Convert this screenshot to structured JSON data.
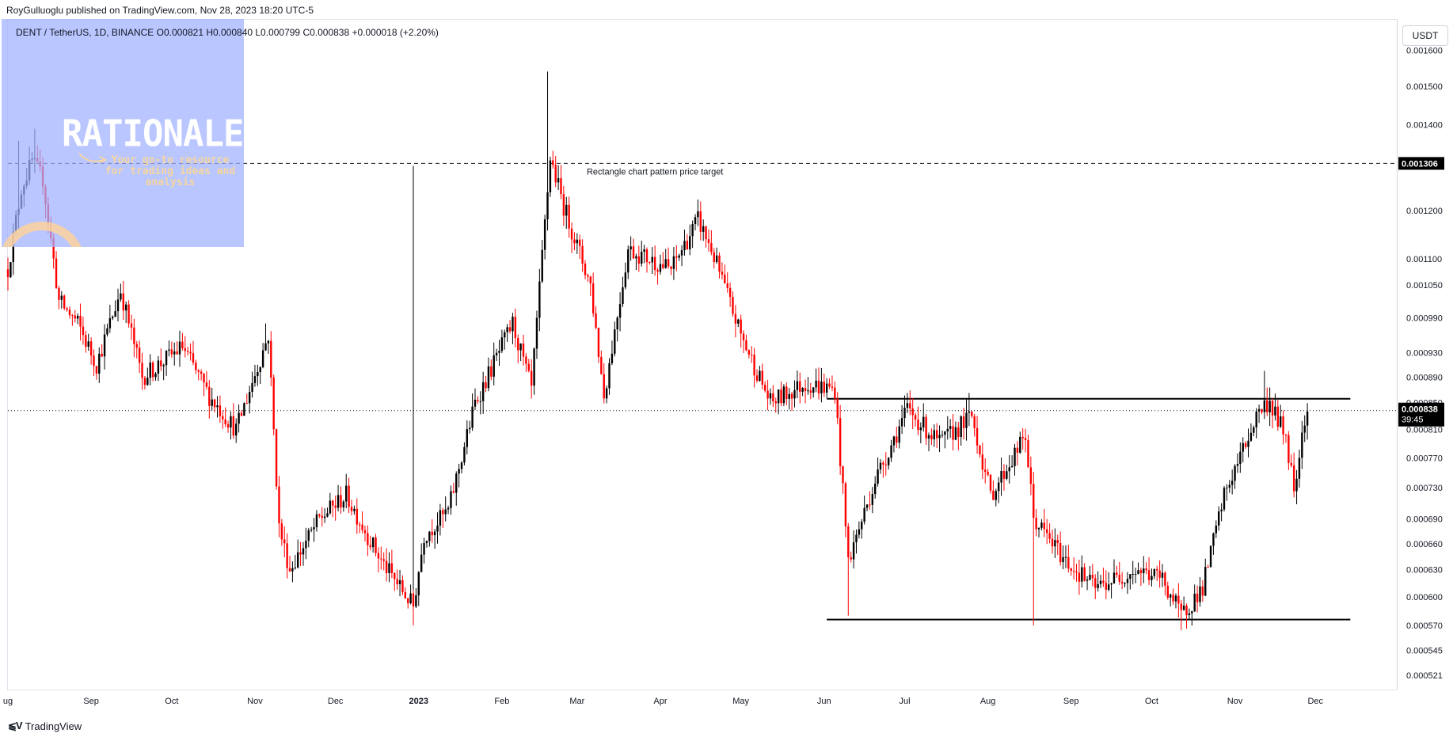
{
  "header": {
    "published_line": "RoyGulluoglu published on TradingView.com, Nov 28, 2023 18:20 UTC-5"
  },
  "legend": {
    "text": "DENT / TetherUS, 1D, BINANCE  O0.000821  H0.000840  L0.000799  C0.000838  +0.000018 (+2.20%)"
  },
  "currency_label": "USDT",
  "branding": {
    "rationale_title": "RATIONALE",
    "rationale_subtitle": "Your go-to resource for trading ideas and analysis",
    "footer_logo": "TradingView"
  },
  "chart_data": {
    "type": "candlestick",
    "symbol": "DENT / TetherUS",
    "interval": "1D",
    "exchange": "BINANCE",
    "ohlc": {
      "open": "0.000821",
      "high": "0.000840",
      "low": "0.000799",
      "close": "0.000838",
      "change": "+0.000018 (+2.20%)"
    },
    "y_axis": {
      "scale": "log",
      "range": [
        0.000508,
        0.00169
      ],
      "ticks": [
        "0.001600",
        "0.001500",
        "0.001400",
        "0.001200",
        "0.001100",
        "0.001050",
        "0.000990",
        "0.000930",
        "0.000890",
        "0.000850",
        "0.000810",
        "0.000770",
        "0.000730",
        "0.000690",
        "0.000660",
        "0.000630",
        "0.000600",
        "0.000570",
        "0.000545",
        "0.000521"
      ]
    },
    "x_axis": {
      "start": "2022-08-01",
      "end": "2023-12-31",
      "ticks": [
        {
          "date": "2022-08-01",
          "label": "ug"
        },
        {
          "date": "2022-09-01",
          "label": "Sep"
        },
        {
          "date": "2022-10-01",
          "label": "Oct"
        },
        {
          "date": "2022-11-01",
          "label": "Nov"
        },
        {
          "date": "2022-12-01",
          "label": "Dec"
        },
        {
          "date": "2023-01-01",
          "label": "2023",
          "bold": true
        },
        {
          "date": "2023-02-01",
          "label": "Feb"
        },
        {
          "date": "2023-03-01",
          "label": "Mar"
        },
        {
          "date": "2023-04-01",
          "label": "Apr"
        },
        {
          "date": "2023-05-01",
          "label": "May"
        },
        {
          "date": "2023-06-01",
          "label": "Jun"
        },
        {
          "date": "2023-07-01",
          "label": "Jul"
        },
        {
          "date": "2023-08-01",
          "label": "Aug"
        },
        {
          "date": "2023-09-01",
          "label": "Sep"
        },
        {
          "date": "2023-10-01",
          "label": "Oct"
        },
        {
          "date": "2023-11-01",
          "label": "Nov"
        },
        {
          "date": "2023-12-01",
          "label": "Dec"
        }
      ]
    },
    "price_path": [
      {
        "date": "2022-08-01",
        "price": 0.00108
      },
      {
        "date": "2022-08-06",
        "price": 0.00125
      },
      {
        "date": "2022-08-10",
        "price": 0.00131
      },
      {
        "date": "2022-08-14",
        "price": 0.00127
      },
      {
        "date": "2022-08-20",
        "price": 0.00102
      },
      {
        "date": "2022-08-27",
        "price": 0.00098
      },
      {
        "date": "2022-09-03",
        "price": 0.00091
      },
      {
        "date": "2022-09-12",
        "price": 0.00104
      },
      {
        "date": "2022-09-20",
        "price": 0.00089
      },
      {
        "date": "2022-10-05",
        "price": 0.00094
      },
      {
        "date": "2022-10-15",
        "price": 0.00086
      },
      {
        "date": "2022-10-25",
        "price": 0.00081
      },
      {
        "date": "2022-11-06",
        "price": 0.00096
      },
      {
        "date": "2022-11-10",
        "price": 0.00068
      },
      {
        "date": "2022-11-14",
        "price": 0.00063
      },
      {
        "date": "2022-11-25",
        "price": 0.00069
      },
      {
        "date": "2022-12-05",
        "price": 0.00072
      },
      {
        "date": "2022-12-18",
        "price": 0.00064
      },
      {
        "date": "2022-12-30",
        "price": 0.00059
      },
      {
        "date": "2023-01-03",
        "price": 0.00067
      },
      {
        "date": "2023-01-12",
        "price": 0.0007
      },
      {
        "date": "2023-01-22",
        "price": 0.00085
      },
      {
        "date": "2023-02-05",
        "price": 0.00098
      },
      {
        "date": "2023-02-12",
        "price": 0.00087
      },
      {
        "date": "2023-02-19",
        "price": 0.00132
      },
      {
        "date": "2023-02-24",
        "price": 0.00121
      },
      {
        "date": "2023-03-06",
        "price": 0.00105
      },
      {
        "date": "2023-03-11",
        "price": 0.00086
      },
      {
        "date": "2023-03-20",
        "price": 0.00112
      },
      {
        "date": "2023-04-05",
        "price": 0.00108
      },
      {
        "date": "2023-04-15",
        "price": 0.00118
      },
      {
        "date": "2023-04-20",
        "price": 0.00112
      },
      {
        "date": "2023-05-01",
        "price": 0.00096
      },
      {
        "date": "2023-05-12",
        "price": 0.00085
      },
      {
        "date": "2023-05-25",
        "price": 0.00088
      },
      {
        "date": "2023-06-05",
        "price": 0.00087
      },
      {
        "date": "2023-06-10",
        "price": 0.00064
      },
      {
        "date": "2023-06-20",
        "price": 0.00074
      },
      {
        "date": "2023-07-02",
        "price": 0.00084
      },
      {
        "date": "2023-07-14",
        "price": 0.00079
      },
      {
        "date": "2023-07-26",
        "price": 0.00083
      },
      {
        "date": "2023-08-02",
        "price": 0.00072
      },
      {
        "date": "2023-08-15",
        "price": 0.0008
      },
      {
        "date": "2023-08-18",
        "price": 0.00069
      },
      {
        "date": "2023-08-30",
        "price": 0.00064
      },
      {
        "date": "2023-09-10",
        "price": 0.00061
      },
      {
        "date": "2023-09-25",
        "price": 0.00063
      },
      {
        "date": "2023-10-05",
        "price": 0.00062
      },
      {
        "date": "2023-10-12",
        "price": 0.00058
      },
      {
        "date": "2023-10-20",
        "price": 0.00061
      },
      {
        "date": "2023-10-28",
        "price": 0.00072
      },
      {
        "date": "2023-11-05",
        "price": 0.00079
      },
      {
        "date": "2023-11-10",
        "price": 0.00084
      },
      {
        "date": "2023-11-14",
        "price": 0.00085
      },
      {
        "date": "2023-11-20",
        "price": 0.0008
      },
      {
        "date": "2023-11-23",
        "price": 0.00073
      },
      {
        "date": "2023-11-27",
        "price": 0.00083
      },
      {
        "date": "2023-11-28",
        "price": 0.000838
      }
    ],
    "annotations": [
      {
        "type": "hline_dashed",
        "price": 0.001306,
        "from": "2022-08-01",
        "to": "2023-12-31",
        "text": "Rectangle chart pattern price target",
        "text_date": "2023-03-30",
        "label": "0.001306"
      },
      {
        "type": "segment",
        "price": 0.000856,
        "from": "2023-06-02",
        "to": "2023-12-14"
      },
      {
        "type": "segment",
        "price": 0.000576,
        "from": "2023-06-02",
        "to": "2023-12-14"
      },
      {
        "type": "vline",
        "date": "2022-12-30",
        "top_price": 0.0013,
        "bottom_price": 0.00057
      },
      {
        "type": "hline_dotted",
        "price": 0.000838,
        "label": "0.000838",
        "countdown": "39:45"
      }
    ]
  }
}
